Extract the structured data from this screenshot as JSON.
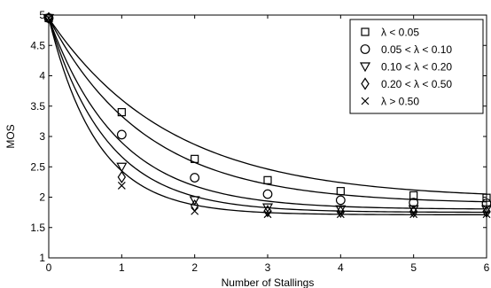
{
  "chart_data": {
    "type": "line",
    "xlabel": "Number of Stallings",
    "ylabel": "MOS",
    "xlim": [
      0,
      6
    ],
    "ylim": [
      1,
      5
    ],
    "x_ticks": [
      "0",
      "1",
      "2",
      "3",
      "4",
      "5",
      "6"
    ],
    "y_ticks": [
      "1",
      "1.5",
      "2",
      "2.5",
      "3",
      "3.5",
      "4",
      "4.5",
      "5"
    ],
    "grid": false,
    "legend_position": "top-right",
    "marker_x": [
      0,
      1,
      2,
      3,
      4,
      5,
      6
    ],
    "series": [
      {
        "name": "λ < 0.05",
        "marker": "square",
        "values": [
          4.95,
          3.4,
          2.63,
          2.28,
          2.1,
          2.03,
          1.99
        ],
        "curve": {
          "floor": 1.97,
          "amplitude": 2.98,
          "rate": 0.6
        }
      },
      {
        "name": "0.05 < λ < 0.10",
        "marker": "circle",
        "values": [
          4.95,
          3.03,
          2.32,
          2.05,
          1.95,
          1.91,
          1.9
        ],
        "curve": {
          "floor": 1.89,
          "amplitude": 3.06,
          "rate": 0.75
        }
      },
      {
        "name": "0.10 < λ < 0.20",
        "marker": "triangle-down",
        "values": [
          4.95,
          2.5,
          1.95,
          1.83,
          1.8,
          1.8,
          1.8
        ],
        "curve": {
          "floor": 1.8,
          "amplitude": 3.15,
          "rate": 1.05
        }
      },
      {
        "name": "0.20 < λ < 0.50",
        "marker": "diamond",
        "values": [
          4.95,
          2.33,
          1.86,
          1.77,
          1.76,
          1.76,
          1.76
        ],
        "curve": {
          "floor": 1.75,
          "amplitude": 3.2,
          "rate": 1.25
        }
      },
      {
        "name": "λ > 0.50",
        "marker": "x",
        "values": [
          4.95,
          2.19,
          1.77,
          1.72,
          1.72,
          1.72,
          1.72
        ],
        "curve": {
          "floor": 1.71,
          "amplitude": 3.24,
          "rate": 1.5
        }
      }
    ]
  }
}
